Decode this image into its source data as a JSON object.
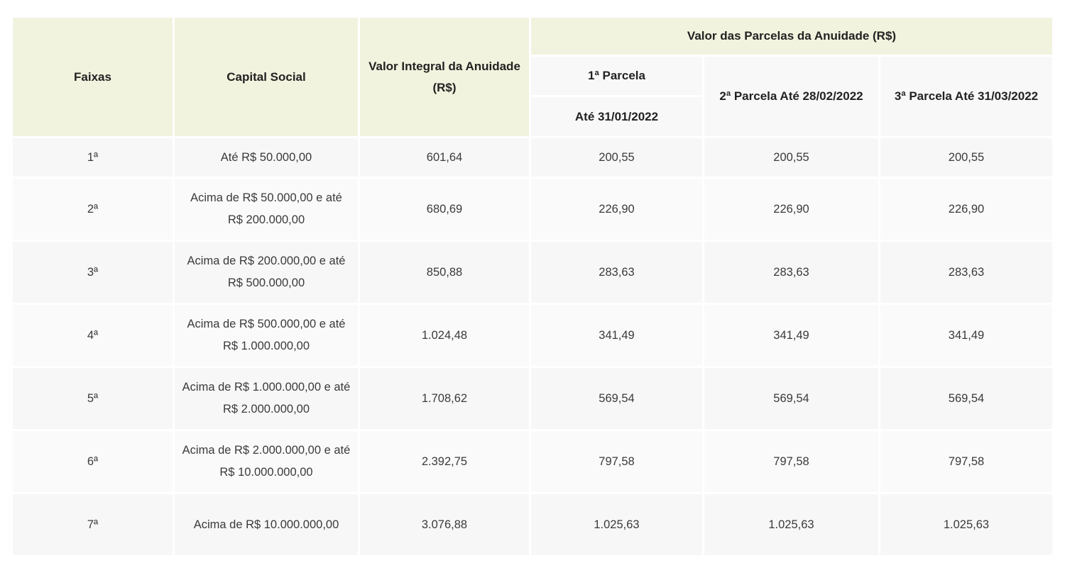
{
  "table": {
    "headers": {
      "faixas": "Faixas",
      "capital_social": "Capital Social",
      "valor_integral": "Valor Integral da Anuidade (R$)",
      "valor_parcelas": "Valor das Parcelas da Anuidade (R$)",
      "parcela1_title": "1ª Parcela",
      "parcela1_date": "Até 31/01/2022",
      "parcela2": "2ª Parcela Até 28/02/2022",
      "parcela3": "3ª Parcela Até 31/03/2022"
    },
    "rows": [
      {
        "faixa": "1ª",
        "capital": "Até R$ 50.000,00",
        "integral": "601,64",
        "p1": "200,55",
        "p2": "200,55",
        "p3": "200,55"
      },
      {
        "faixa": "2ª",
        "capital": "Acima de R$ 50.000,00 e até R$ 200.000,00",
        "integral": "680,69",
        "p1": "226,90",
        "p2": "226,90",
        "p3": "226,90"
      },
      {
        "faixa": "3ª",
        "capital": "Acima de R$ 200.000,00 e até R$ 500.000,00",
        "integral": "850,88",
        "p1": "283,63",
        "p2": "283,63",
        "p3": "283,63"
      },
      {
        "faixa": "4ª",
        "capital": "Acima de R$ 500.000,00 e até R$ 1.000.000,00",
        "integral": "1.024,48",
        "p1": "341,49",
        "p2": "341,49",
        "p3": "341,49"
      },
      {
        "faixa": "5ª",
        "capital": "Acima de R$ 1.000.000,00 e até R$ 2.000.000,00",
        "integral": "1.708,62",
        "p1": "569,54",
        "p2": "569,54",
        "p3": "569,54"
      },
      {
        "faixa": "6ª",
        "capital": "Acima de R$ 2.000.000,00 e até R$ 10.000.000,00",
        "integral": "2.392,75",
        "p1": "797,58",
        "p2": "797,58",
        "p3": "797,58"
      },
      {
        "faixa": "7ª",
        "capital": "Acima de R$ 10.000.000,00",
        "integral": "3.076,88",
        "p1": "1.025,63",
        "p2": "1.025,63",
        "p3": "1.025,63"
      }
    ]
  },
  "colors": {
    "header_bg": "#f2f3de",
    "cell_bg": "#f7f7f7"
  }
}
